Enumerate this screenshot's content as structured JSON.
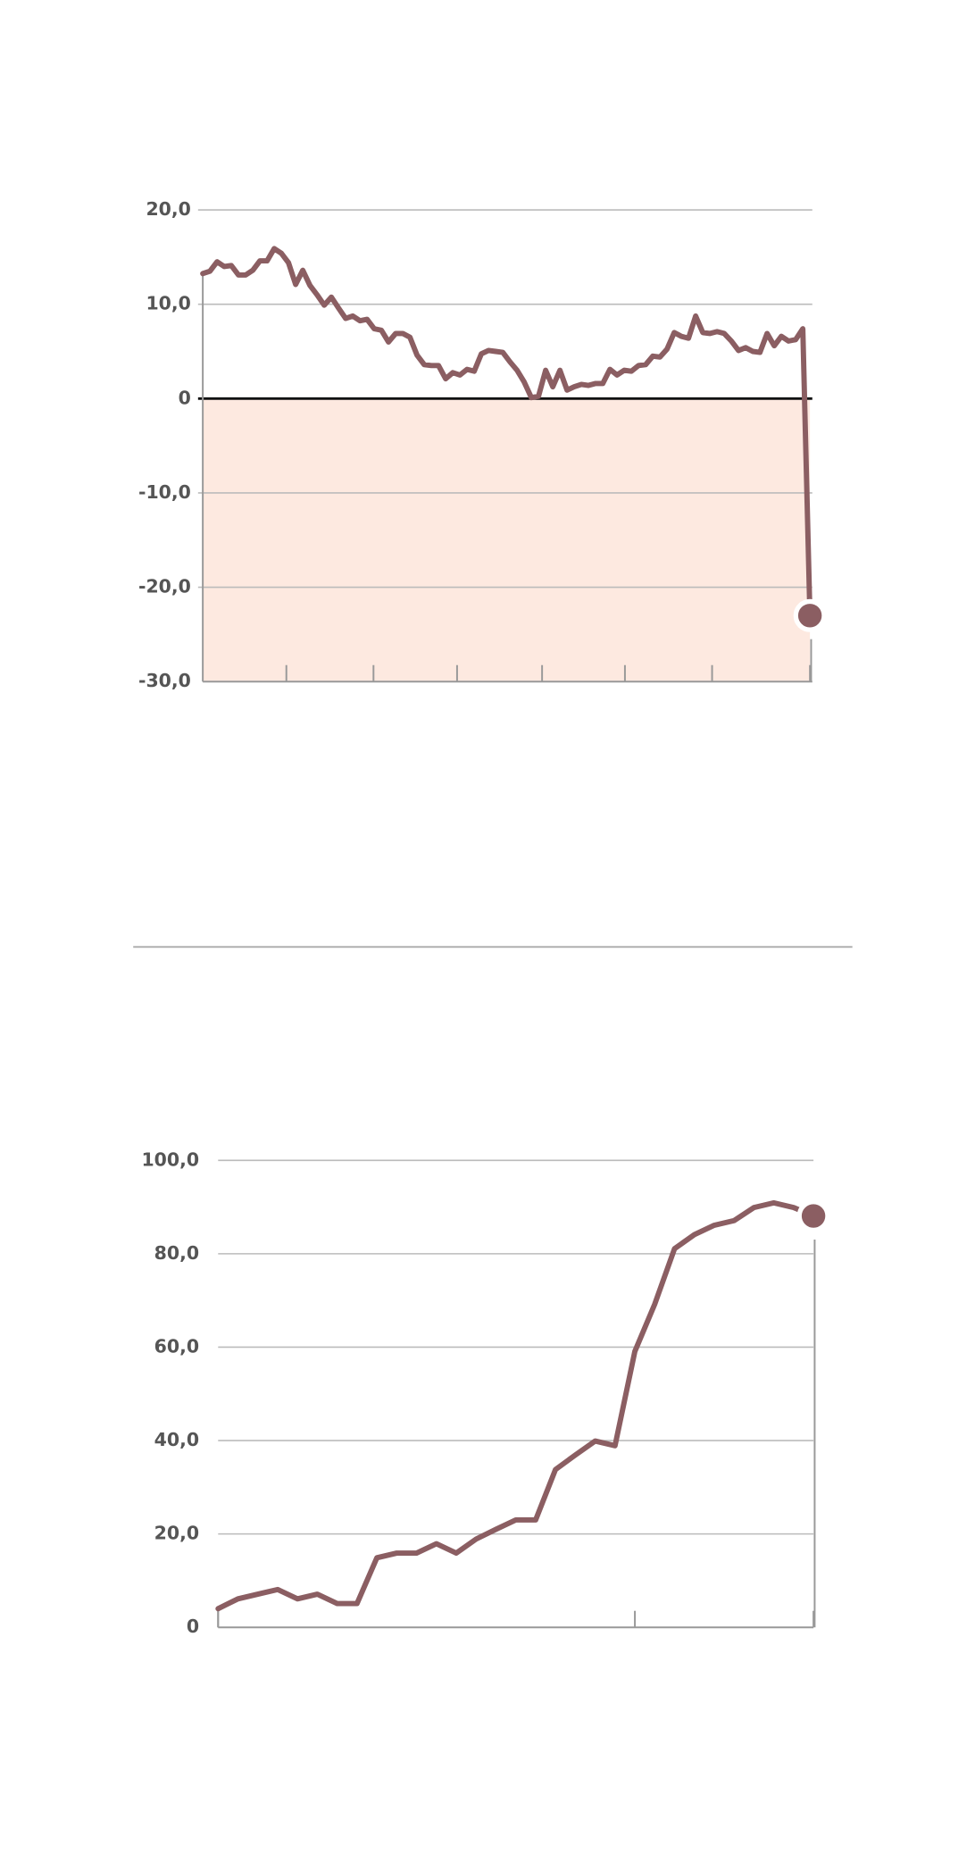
{
  "chart_data": [
    {
      "type": "line",
      "series": [
        {
          "color": "#8b5e62",
          "values": [
            13.25,
            13.5,
            14.5,
            14,
            14.1,
            13.1,
            13.1,
            13.6,
            14.6,
            14.6,
            15.9,
            15.4,
            14.4,
            12.1,
            13.6,
            12,
            11,
            9.9,
            10.75,
            9.6,
            8.5,
            8.75,
            8.25,
            8.4,
            7.4,
            7.25,
            6,
            6.9,
            6.9,
            6.5,
            4.6,
            3.6,
            3.5,
            3.5,
            2.1,
            2.75,
            2.5,
            3.1,
            2.9,
            4.75,
            5.1,
            5,
            4.9,
            3.9,
            3,
            1.75,
            0.1,
            0.25,
            3,
            1.25,
            3,
            0.9,
            1.25,
            1.5,
            1.4,
            1.6,
            1.6,
            3.1,
            2.5,
            3,
            2.9,
            3.5,
            3.6,
            4.5,
            4.4,
            5.25,
            7,
            6.6,
            6.4,
            8.75,
            7,
            6.9,
            7.1,
            6.9,
            6.1,
            5.1,
            5.4,
            5,
            4.9,
            6.9,
            5.6,
            6.6,
            6.1,
            6.25,
            7.4,
            -23
          ]
        }
      ],
      "xlim": [
        0,
        85
      ],
      "xticks": [
        11.7,
        23.9,
        35.6,
        47.5,
        59.1,
        71.3,
        85
      ],
      "ylim": [
        -30,
        20
      ],
      "yticks": [
        {
          "value": -30,
          "label": "-30,0"
        },
        {
          "value": -20,
          "label": "-20,0"
        },
        {
          "value": -10,
          "label": "-10,0"
        },
        0,
        {
          "value": 10,
          "label": "10,0"
        },
        {
          "value": 20,
          "label": "20,0"
        }
      ],
      "grid": true
    },
    {
      "type": "line",
      "series": [
        {
          "color": "#8b5e62",
          "values": [
            4.0,
            6.1,
            7.1,
            8.1,
            6.1,
            7.1,
            5.1,
            5.1,
            14.9,
            15.9,
            15.9,
            17.9,
            15.9,
            18.9,
            21,
            23,
            23,
            33.8,
            36.9,
            39.9,
            38.9,
            59.1,
            69.2,
            81.1,
            84.1,
            86.1,
            87.1,
            89.9,
            90.9,
            89.9,
            88.1
          ]
        }
      ],
      "xlim": [
        0,
        30
      ],
      "xticks": [
        0,
        21,
        30
      ],
      "ylim": [
        0,
        100
      ],
      "yticks": [
        0,
        {
          "value": 20,
          "label": "20,0"
        },
        {
          "value": 40,
          "label": "40,0"
        },
        {
          "value": 60,
          "label": "60,0"
        },
        {
          "value": 80,
          "label": "80,0"
        },
        {
          "value": 100,
          "label": "100,0"
        }
      ],
      "grid": true
    }
  ]
}
